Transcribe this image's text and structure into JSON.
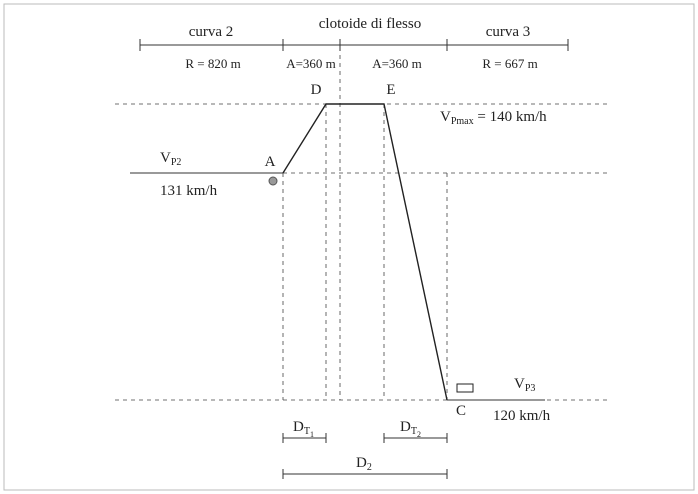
{
  "header": {
    "left": {
      "title": "curva 2",
      "param": "R = 820 m"
    },
    "middle": {
      "title": "clotoide di flesso",
      "param_left": "A=360 m",
      "param_right": "A=360 m"
    },
    "right": {
      "title": "curva 3",
      "param": "R = 667 m"
    }
  },
  "points": {
    "A": "A",
    "D": "D",
    "E": "E",
    "C": "C"
  },
  "speeds": {
    "vp2": {
      "main": "V",
      "sub": "P2",
      "value": "131 km/h"
    },
    "vpmax": {
      "main": "V",
      "sub": "Pmax",
      "rest": " = 140 km/h"
    },
    "vp3": {
      "main": "V",
      "sub": "P3",
      "value": "120 km/h"
    }
  },
  "distances": {
    "dt1": {
      "main": "D",
      "sub": "T",
      "subsub": "1"
    },
    "dt2": {
      "main": "D",
      "sub": "T",
      "subsub": "2"
    },
    "d2": {
      "main": "D",
      "sub": "2"
    }
  }
}
